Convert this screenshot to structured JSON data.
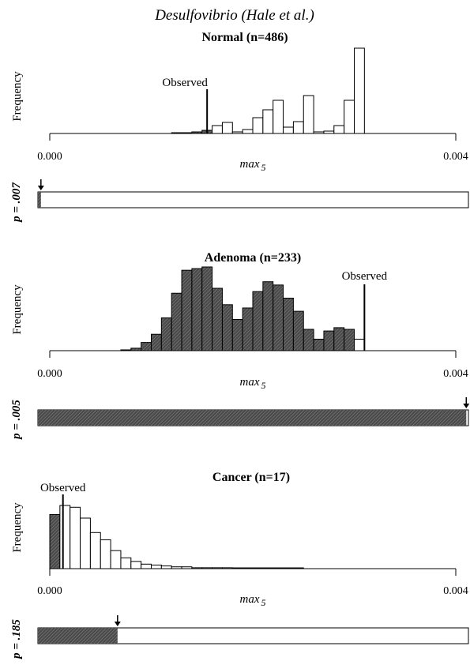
{
  "chart_data": {
    "title": "Desulfovibrio (Hale et al.)",
    "colors": {
      "shaded": "#555555",
      "open": "#ffffff",
      "stroke": "#000000"
    },
    "panels": [
      {
        "type": "bar",
        "title": "Normal (n=486)",
        "ylabel": "Frequency",
        "xlabel": "max",
        "xlabel_subscript": "5",
        "xticks": [
          "0.000",
          "0.004"
        ],
        "xlim": [
          0,
          0.004
        ],
        "observed_label": "Observed",
        "observed": 0.00155,
        "bins": {
          "start": 0.0012,
          "width": 0.0001,
          "heights": [
            1,
            1,
            2,
            4,
            10,
            14,
            2,
            5,
            20,
            30,
            42,
            8,
            15,
            48,
            2,
            3,
            10,
            42,
            108
          ],
          "shaded": [
            1,
            1,
            1,
            1,
            0,
            0,
            0,
            0,
            0,
            0,
            0,
            0,
            0,
            0,
            0,
            0,
            0,
            0,
            0
          ]
        },
        "p_label": "p = .007",
        "p_value": 0.007,
        "p_bar_shaded": "left"
      },
      {
        "type": "bar",
        "title": "Adenoma (n=233)",
        "ylabel": "Frequency",
        "xlabel": "max",
        "xlabel_subscript": "5",
        "xticks": [
          "0.000",
          "0.004"
        ],
        "xlim": [
          0,
          0.004
        ],
        "observed_label": "Observed",
        "observed": 0.0031,
        "bins": {
          "start": 0.0007,
          "width": 0.0001,
          "heights": [
            1,
            3,
            10,
            20,
            40,
            70,
            98,
            100,
            102,
            76,
            56,
            38,
            52,
            72,
            84,
            80,
            64,
            48,
            26,
            14,
            24,
            28,
            26,
            14
          ],
          "shaded": [
            1,
            1,
            1,
            1,
            1,
            1,
            1,
            1,
            1,
            1,
            1,
            1,
            1,
            1,
            1,
            1,
            1,
            1,
            1,
            1,
            1,
            1,
            1,
            0
          ]
        },
        "p_label": "p = .005",
        "p_value": 0.005,
        "p_bar_shaded": "right"
      },
      {
        "type": "bar",
        "title": "Cancer (n=17)",
        "ylabel": "Frequency",
        "xlabel": "max",
        "xlabel_subscript": "5",
        "xticks": [
          "0.000",
          "0.004"
        ],
        "xlim": [
          0,
          0.004
        ],
        "observed_label": "Observed",
        "observed": 0.00013,
        "bins": {
          "start": 0.0,
          "width": 0.0001,
          "heights": [
            60,
            70,
            68,
            56,
            40,
            32,
            20,
            12,
            8,
            5,
            4,
            3,
            2,
            2,
            1,
            1,
            1,
            1,
            0.5,
            0.5,
            0.5,
            0.5,
            0.5,
            0.5,
            0.5
          ],
          "shaded": [
            1,
            0,
            0,
            0,
            0,
            0,
            0,
            0,
            0,
            0,
            0,
            0,
            0,
            0,
            0,
            0,
            0,
            0,
            0,
            0,
            0,
            0,
            0,
            0,
            0
          ]
        },
        "p_label": "p = .185",
        "p_value": 0.185,
        "p_bar_shaded": "left"
      }
    ]
  }
}
